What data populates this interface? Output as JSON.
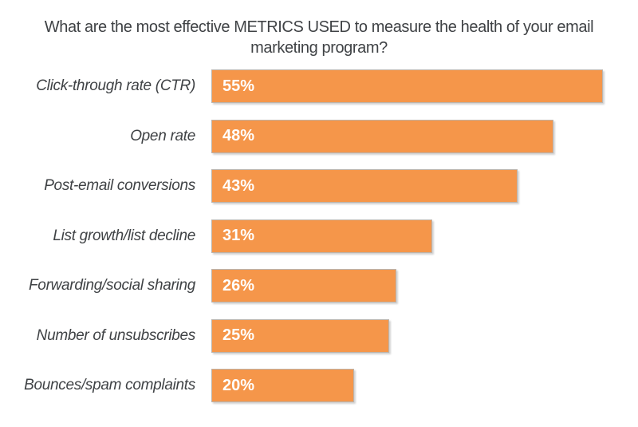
{
  "title_lines": [
    "What are the most effective METRICS USED to measure the health of your email",
    "marketing program?"
  ],
  "chart_data": {
    "type": "bar",
    "orientation": "horizontal",
    "title": "What are the most effective METRICS USED to measure the health of your email marketing program?",
    "categories": [
      "Click-through rate (CTR)",
      "Open rate",
      "Post-email conversions",
      "List growth/list decline",
      "Forwarding/social sharing",
      "Number of unsubscribes",
      "Bounces/spam complaints"
    ],
    "values": [
      55,
      48,
      43,
      31,
      26,
      25,
      20
    ],
    "value_labels": [
      "55%",
      "48%",
      "43%",
      "31%",
      "26%",
      "25%",
      "20%"
    ],
    "xlabel": "",
    "ylabel": "",
    "xlim": [
      0,
      60
    ],
    "grid": false,
    "legend": false,
    "axis_ticks_visible": false,
    "colors": {
      "bar": "#F5964A",
      "bar_border": "#BCB4AC",
      "label_text": "#3F4245",
      "value_text": "#FFFFFF",
      "title_text": "#3F4245",
      "background": "#FFFFFF"
    }
  }
}
